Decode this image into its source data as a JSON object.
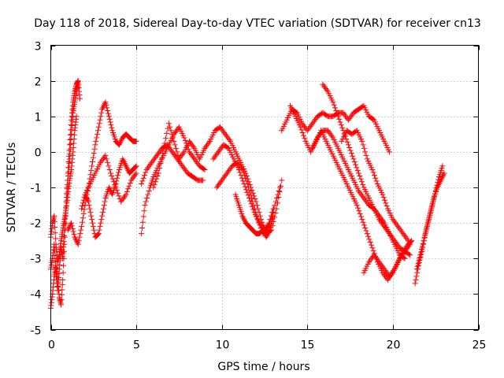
{
  "chart_data": {
    "type": "scatter",
    "title": "Day 118 of 2018, Sidereal Day-to-day VTEC variation (SDTVAR) for receiver cn13",
    "xlabel": "GPS time / hours",
    "ylabel": "SDTVAR / TECUs",
    "xlim": [
      0,
      25
    ],
    "ylim": [
      -5,
      3
    ],
    "xticks": [
      0,
      5,
      10,
      15,
      20,
      25
    ],
    "xtick_labels": [
      "0",
      "5",
      "10",
      "15",
      "20",
      "25"
    ],
    "yticks": [
      -5,
      -4,
      -3,
      -2,
      -1,
      0,
      1,
      2,
      3
    ],
    "ytick_labels": [
      "-5",
      "-4",
      "-3",
      "-2",
      "-1",
      "0",
      "1",
      "2",
      "3"
    ],
    "grid": true,
    "marker": "plus",
    "color": "#ff0000",
    "series": [
      {
        "x": [
          0.0,
          0.1,
          0.2,
          0.3,
          0.4,
          0.5,
          0.6,
          0.7,
          0.8,
          0.9,
          1.0,
          1.1,
          1.2,
          1.3,
          1.4,
          1.5,
          1.6,
          1.7
        ],
        "y": [
          -4.4,
          -4.0,
          -3.5,
          -3.2,
          -3.6,
          -4.1,
          -4.3,
          -3.6,
          -2.6,
          -1.6,
          -0.6,
          0.2,
          0.9,
          1.4,
          1.7,
          1.9,
          2.0,
          1.5
        ]
      },
      {
        "x": [
          0.0,
          0.1,
          0.2,
          0.3,
          0.4,
          0.5,
          0.6,
          0.7,
          0.8,
          0.9,
          1.0,
          1.1,
          1.2,
          1.3,
          1.4,
          1.5,
          1.6
        ],
        "y": [
          -3.3,
          -3.0,
          -2.6,
          -3.4,
          -3.9,
          -3.3,
          -2.7,
          -3.0,
          -2.2,
          -1.4,
          -0.8,
          -0.2,
          0.5,
          1.1,
          1.4,
          1.7,
          1.9
        ]
      },
      {
        "x": [
          0.0,
          0.1,
          0.2,
          0.3,
          0.4,
          0.5,
          0.6,
          0.7,
          0.8,
          0.9,
          1.0,
          1.1,
          1.2,
          1.3,
          1.4,
          1.5
        ],
        "y": [
          -2.4,
          -2.0,
          -1.8,
          -2.6,
          -3.1,
          -2.9,
          -2.5,
          -2.2,
          -1.9,
          -1.6,
          -1.2,
          -0.8,
          -0.5,
          0.0,
          0.6,
          1.0
        ]
      },
      {
        "x": [
          1.0,
          1.2,
          1.4,
          1.6,
          1.8,
          2.0,
          2.2,
          2.4,
          2.6,
          2.8,
          3.0,
          3.2,
          3.4,
          3.6,
          3.8,
          4.0,
          4.2,
          4.4,
          4.6,
          4.8,
          5.0
        ],
        "y": [
          -2.2,
          -2.0,
          -2.4,
          -2.6,
          -2.1,
          -1.5,
          -1.0,
          -0.4,
          0.2,
          0.7,
          1.2,
          1.4,
          1.0,
          0.6,
          0.3,
          0.2,
          0.4,
          0.5,
          0.4,
          0.3,
          0.3
        ]
      },
      {
        "x": [
          1.8,
          2.0,
          2.2,
          2.4,
          2.6,
          2.8,
          3.0,
          3.2,
          3.4,
          3.6,
          3.8,
          4.0,
          4.2,
          4.4,
          4.6,
          4.8,
          5.0
        ],
        "y": [
          -1.6,
          -1.2,
          -1.4,
          -1.9,
          -2.4,
          -2.3,
          -1.8,
          -1.3,
          -1.0,
          -1.2,
          -0.9,
          -0.5,
          -0.2,
          -0.4,
          -0.6,
          -0.5,
          -0.4
        ]
      },
      {
        "x": [
          2.0,
          2.3,
          2.6,
          2.9,
          3.2,
          3.5,
          3.8,
          4.1,
          4.4,
          4.7,
          5.0
        ],
        "y": [
          -1.2,
          -0.9,
          -0.6,
          -0.3,
          -0.1,
          -0.6,
          -1.0,
          -1.4,
          -1.2,
          -0.8,
          -0.6
        ]
      },
      {
        "x": [
          5.3,
          5.5,
          5.8,
          6.0,
          6.3,
          6.6,
          6.9,
          7.2,
          7.5,
          7.8,
          8.1,
          8.4,
          8.7,
          9.0
        ],
        "y": [
          -2.3,
          -1.5,
          -1.0,
          -0.7,
          -0.4,
          -0.1,
          0.2,
          0.5,
          0.7,
          0.4,
          0.0,
          -0.2,
          -0.4,
          -0.5
        ]
      },
      {
        "x": [
          5.3,
          5.6,
          5.9,
          6.2,
          6.5,
          6.8,
          7.1,
          7.4,
          7.7,
          8.0,
          8.3,
          8.6,
          8.9
        ],
        "y": [
          -0.9,
          -0.5,
          -0.3,
          -0.1,
          0.1,
          0.2,
          0.0,
          -0.2,
          -0.4,
          -0.6,
          -0.7,
          -0.8,
          -0.8
        ]
      },
      {
        "x": [
          6.0,
          6.3,
          6.6,
          6.9,
          7.2,
          7.5,
          7.8,
          8.1,
          8.4,
          8.7,
          9.0
        ],
        "y": [
          -1.0,
          -0.6,
          0.1,
          0.8,
          0.3,
          -0.2,
          0.0,
          0.3,
          0.1,
          -0.2,
          0.1
        ]
      },
      {
        "x": [
          9.0,
          9.3,
          9.6,
          9.9,
          10.2,
          10.5,
          10.8,
          11.1,
          11.4,
          11.7,
          12.0,
          12.3,
          12.6,
          12.9,
          13.2,
          13.5
        ],
        "y": [
          0.1,
          0.3,
          0.6,
          0.7,
          0.5,
          0.3,
          0.0,
          -0.3,
          -0.6,
          -1.0,
          -1.4,
          -1.9,
          -2.3,
          -2.2,
          -1.6,
          -0.8
        ]
      },
      {
        "x": [
          9.5,
          9.8,
          10.1,
          10.4,
          10.7,
          11.0,
          11.3,
          11.6,
          11.9,
          12.2,
          12.5,
          12.8,
          13.1,
          13.4
        ],
        "y": [
          -0.2,
          0.0,
          0.2,
          0.1,
          -0.2,
          -0.5,
          -0.9,
          -1.3,
          -1.7,
          -2.0,
          -2.2,
          -2.0,
          -1.5,
          -1.0
        ]
      },
      {
        "x": [
          9.7,
          10.0,
          10.3,
          10.6,
          10.9,
          11.2,
          11.5,
          11.8,
          12.1,
          12.4,
          12.7,
          13.0
        ],
        "y": [
          -1.0,
          -0.8,
          -0.6,
          -0.4,
          -0.3,
          -0.5,
          -0.9,
          -1.4,
          -1.9,
          -2.3,
          -2.1,
          -1.6
        ]
      },
      {
        "x": [
          10.8,
          11.0,
          11.2,
          11.4,
          11.6,
          11.8,
          12.0,
          12.2,
          12.4,
          12.6,
          12.8,
          13.0
        ],
        "y": [
          -1.2,
          -1.5,
          -1.8,
          -2.0,
          -2.1,
          -2.2,
          -2.3,
          -2.3,
          -2.2,
          -2.4,
          -2.2,
          -1.8
        ]
      },
      {
        "x": [
          13.5,
          13.8,
          14.1,
          14.4,
          14.7,
          15.0,
          15.3,
          15.6,
          15.9,
          16.2,
          16.5,
          16.8,
          17.1,
          17.4,
          17.7,
          18.0,
          18.3,
          18.6,
          18.9,
          19.2,
          19.5,
          19.8
        ],
        "y": [
          0.6,
          0.9,
          1.2,
          1.1,
          0.8,
          0.6,
          0.8,
          1.0,
          1.1,
          1.0,
          1.0,
          1.1,
          1.1,
          0.9,
          1.1,
          1.2,
          1.3,
          1.0,
          0.9,
          0.6,
          0.3,
          0.0
        ]
      },
      {
        "x": [
          14.0,
          14.3,
          14.6,
          14.9,
          15.2,
          15.5,
          15.8,
          16.1,
          16.4,
          16.7,
          17.0,
          17.3,
          17.6,
          17.9,
          18.2,
          18.5,
          18.8,
          19.1,
          19.4,
          19.7,
          20.0,
          20.3,
          20.6,
          20.9,
          21.1
        ],
        "y": [
          1.3,
          1.0,
          0.7,
          0.3,
          0.0,
          0.3,
          0.6,
          0.3,
          0.0,
          -0.3,
          -0.6,
          -0.9,
          -1.2,
          -1.5,
          -1.9,
          -2.3,
          -2.7,
          -3.1,
          -3.4,
          -3.6,
          -3.4,
          -3.1,
          -2.8,
          -2.6,
          -2.5
        ]
      },
      {
        "x": [
          15.3,
          15.6,
          15.9,
          16.2,
          16.5,
          16.8,
          17.1,
          17.4,
          17.7,
          18.0,
          18.3,
          18.6,
          18.9,
          19.2,
          19.5,
          19.8,
          20.1,
          20.4,
          20.7
        ],
        "y": [
          0.1,
          0.4,
          0.6,
          0.6,
          0.4,
          0.1,
          -0.2,
          -0.5,
          -0.8,
          -1.1,
          -1.3,
          -1.5,
          -1.6,
          -1.8,
          -2.0,
          -2.3,
          -2.6,
          -2.9,
          -3.0
        ]
      },
      {
        "x": [
          15.9,
          16.2,
          16.5,
          16.8,
          17.1,
          17.4,
          17.7,
          18.0,
          18.3,
          18.6,
          18.9,
          19.2,
          19.5,
          19.8,
          20.1,
          20.4,
          20.7,
          21.0
        ],
        "y": [
          1.9,
          1.7,
          1.4,
          1.0,
          0.6,
          0.2,
          -0.2,
          -0.6,
          -1.0,
          -1.3,
          -1.6,
          -1.9,
          -2.1,
          -2.3,
          -2.5,
          -2.7,
          -2.8,
          -2.9
        ]
      },
      {
        "x": [
          18.3,
          18.6,
          18.9,
          19.2,
          19.5,
          19.8,
          20.1,
          20.4,
          20.7,
          21.0
        ],
        "y": [
          -3.4,
          -3.1,
          -2.9,
          -3.1,
          -3.3,
          -3.5,
          -3.3,
          -3.0,
          -2.8,
          -2.6
        ]
      },
      {
        "x": [
          17.0,
          17.3,
          17.6,
          17.9,
          18.2,
          18.5,
          18.8,
          19.1,
          19.4,
          19.7,
          20.0,
          20.3,
          20.6,
          20.9
        ],
        "y": [
          0.3,
          0.6,
          0.5,
          0.6,
          0.3,
          -0.2,
          -0.5,
          -0.9,
          -1.2,
          -1.6,
          -1.9,
          -2.1,
          -2.3,
          -2.5
        ]
      },
      {
        "x": [
          21.3,
          21.5,
          21.7,
          21.9,
          22.1,
          22.3,
          22.5,
          22.7,
          22.9
        ],
        "y": [
          -3.7,
          -3.2,
          -2.8,
          -2.3,
          -1.9,
          -1.5,
          -1.1,
          -0.7,
          -0.4
        ]
      },
      {
        "x": [
          21.4,
          21.6,
          21.8,
          22.0,
          22.2,
          22.4,
          22.6,
          22.8,
          23.0
        ],
        "y": [
          -3.3,
          -2.9,
          -2.5,
          -2.1,
          -1.7,
          -1.3,
          -1.0,
          -0.8,
          -0.6
        ]
      }
    ]
  }
}
